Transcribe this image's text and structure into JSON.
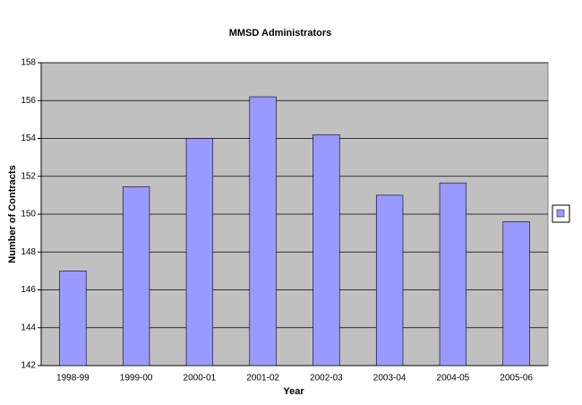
{
  "chart_data": {
    "type": "bar",
    "title": "MMSD Administrators",
    "x_label": "Year",
    "y_label": "Number of Contracts",
    "categories": [
      "1998-99",
      "1999-00",
      "2000-01",
      "2001-02",
      "2002-03",
      "2003-04",
      "2004-05",
      "2005-06"
    ],
    "values": [
      147,
      151.45,
      154,
      156.2,
      154.2,
      151,
      151.65,
      149.6
    ],
    "color": "#9999ff",
    "ylim": [
      142,
      158
    ],
    "yticks": [
      142,
      144,
      146,
      148,
      150,
      152,
      154,
      156,
      158
    ],
    "grid": true
  }
}
